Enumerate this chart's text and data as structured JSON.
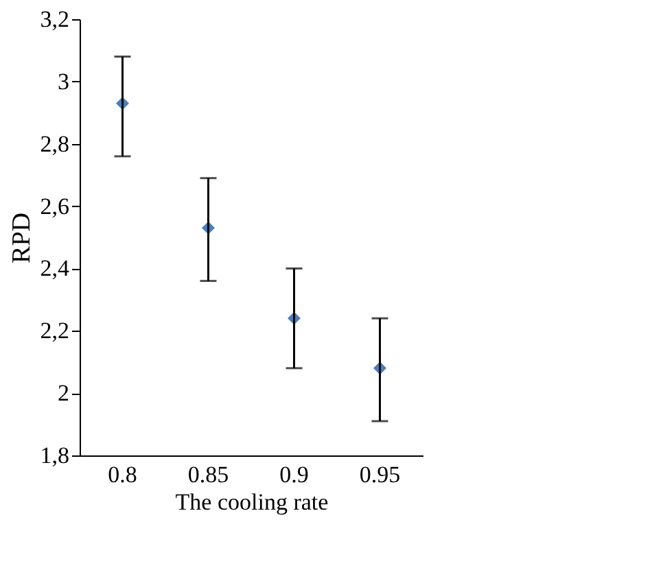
{
  "chart_data": {
    "type": "scatter",
    "xlabel": "The cooling rate",
    "ylabel": "RPD",
    "categories": [
      "0.8",
      "0.85",
      "0.9",
      "0.95"
    ],
    "series": [
      {
        "color": "#4a7ebb",
        "values": [
          2.93,
          2.53,
          2.24,
          2.08
        ],
        "errors": [
          [
            2.76,
            3.08
          ],
          [
            2.36,
            2.69
          ],
          [
            2.08,
            2.4
          ],
          [
            1.91,
            2.24
          ]
        ]
      }
    ],
    "ylim": [
      1.8,
      3.2
    ],
    "yticks": [
      {
        "value": 1.8,
        "label": "1,8"
      },
      2,
      {
        "value": 2.2,
        "label": "2,2"
      },
      {
        "value": 2.4,
        "label": "2,4"
      },
      {
        "value": 2.6,
        "label": "2,6"
      },
      {
        "value": 2.8,
        "label": "2,8"
      },
      3,
      {
        "value": 3.2,
        "label": "3,2"
      }
    ],
    "marker": "diamond",
    "grid": false
  }
}
